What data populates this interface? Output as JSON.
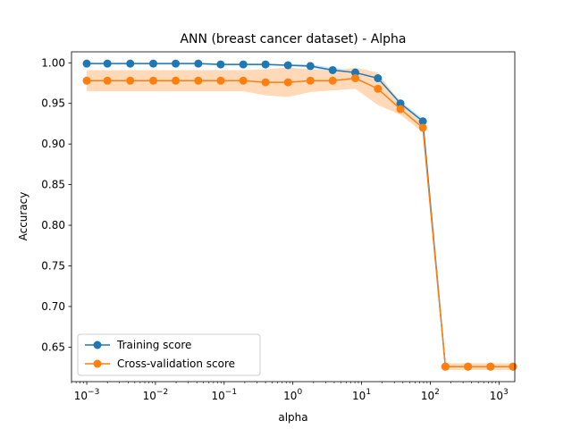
{
  "chart_data": {
    "type": "line",
    "title": "ANN (breast cancer dataset) - Alpha",
    "xlabel": "alpha",
    "ylabel": "Accuracy",
    "xscale": "log",
    "xlim": [
      0.0006,
      1700
    ],
    "ylim": [
      0.6075,
      1.0135
    ],
    "grid": false,
    "legend_position": "lower-left",
    "x_ticks": [
      {
        "value": 0.001,
        "base": "10",
        "exp": "−3"
      },
      {
        "value": 0.01,
        "base": "10",
        "exp": "−2"
      },
      {
        "value": 0.1,
        "base": "10",
        "exp": "−1"
      },
      {
        "value": 1,
        "base": "10",
        "exp": "0"
      },
      {
        "value": 10,
        "base": "10",
        "exp": "1"
      },
      {
        "value": 100,
        "base": "10",
        "exp": "2"
      },
      {
        "value": 1000,
        "base": "10",
        "exp": "3"
      }
    ],
    "y_ticks": [
      {
        "value": 0.65,
        "label": "0.65"
      },
      {
        "value": 0.7,
        "label": "0.70"
      },
      {
        "value": 0.75,
        "label": "0.75"
      },
      {
        "value": 0.8,
        "label": "0.80"
      },
      {
        "value": 0.85,
        "label": "0.85"
      },
      {
        "value": 0.9,
        "label": "0.90"
      },
      {
        "value": 0.95,
        "label": "0.95"
      },
      {
        "value": 1.0,
        "label": "1.00"
      }
    ],
    "x": [
      0.001,
      0.002,
      0.0043,
      0.0093,
      0.0197,
      0.042,
      0.089,
      0.19,
      0.4,
      0.85,
      1.8,
      3.8,
      8.1,
      17.3,
      36.8,
      78,
      166,
      354,
      753,
      1600
    ],
    "series": [
      {
        "name": "Training score",
        "color": "#1f77b4",
        "values": [
          0.999,
          0.999,
          0.999,
          0.999,
          0.999,
          0.999,
          0.998,
          0.998,
          0.998,
          0.997,
          0.996,
          0.991,
          0.988,
          0.981,
          0.95,
          0.928,
          0.626,
          0.626,
          0.626,
          0.626
        ],
        "band_lower": [
          0.998,
          0.998,
          0.998,
          0.998,
          0.998,
          0.998,
          0.997,
          0.997,
          0.997,
          0.996,
          0.994,
          0.988,
          0.985,
          0.977,
          0.947,
          0.925,
          0.625,
          0.625,
          0.625,
          0.625
        ],
        "band_upper": [
          1.0,
          1.0,
          1.0,
          1.0,
          1.0,
          1.0,
          0.999,
          0.999,
          0.999,
          0.998,
          0.998,
          0.994,
          0.991,
          0.985,
          0.953,
          0.931,
          0.627,
          0.627,
          0.627,
          0.627
        ]
      },
      {
        "name": "Cross-validation score",
        "color": "#ff7f0e",
        "band_color": "#ffd9b8",
        "values": [
          0.978,
          0.978,
          0.978,
          0.978,
          0.978,
          0.978,
          0.978,
          0.978,
          0.976,
          0.976,
          0.978,
          0.978,
          0.981,
          0.968,
          0.943,
          0.92,
          0.626,
          0.626,
          0.626,
          0.626
        ],
        "band_lower": [
          0.965,
          0.965,
          0.965,
          0.965,
          0.965,
          0.965,
          0.965,
          0.965,
          0.96,
          0.958,
          0.964,
          0.966,
          0.968,
          0.948,
          0.936,
          0.915,
          0.622,
          0.622,
          0.622,
          0.622
        ],
        "band_upper": [
          0.991,
          0.991,
          0.991,
          0.991,
          0.991,
          0.991,
          0.991,
          0.991,
          0.992,
          0.994,
          0.992,
          0.99,
          0.994,
          0.988,
          0.95,
          0.925,
          0.63,
          0.63,
          0.63,
          0.63
        ]
      }
    ]
  }
}
